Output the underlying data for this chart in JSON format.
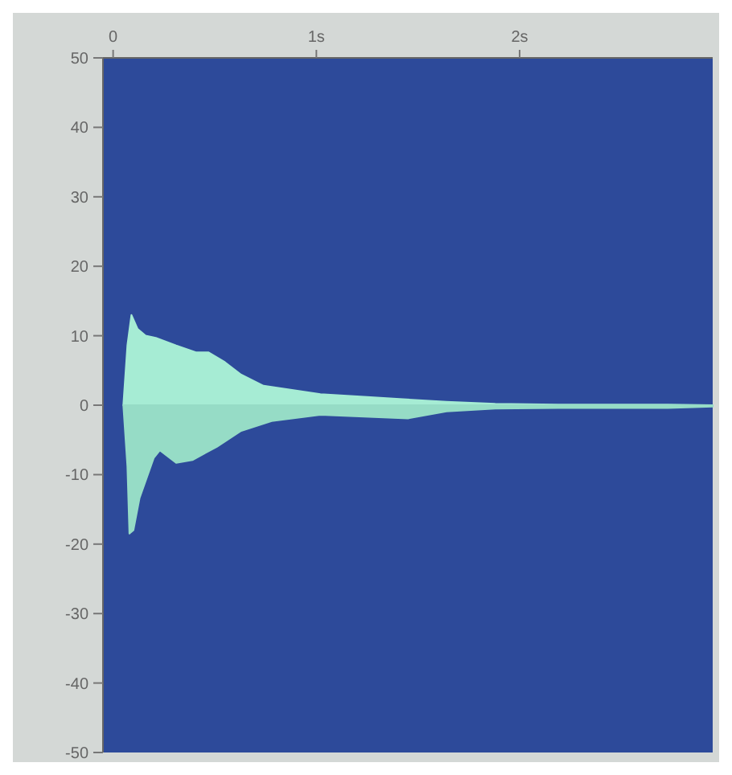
{
  "chart_data": {
    "type": "area",
    "xlim": [
      -0.05,
      2.95
    ],
    "ylim": [
      -50,
      50
    ],
    "xticks": [
      0,
      {
        "value": 1,
        "label": "1s"
      },
      {
        "value": 2,
        "label": "2s"
      }
    ],
    "yticks": [
      50,
      40,
      30,
      20,
      10,
      0,
      -10,
      -20,
      -30,
      -40,
      -50
    ],
    "grid": false,
    "series": [
      {
        "color": "#a6ecd4",
        "x": [
          0.05,
          0.07,
          0.09,
          0.12,
          0.16,
          0.21,
          0.31,
          0.41,
          0.47,
          0.55,
          0.63,
          0.74,
          0.86,
          1.02,
          1.25,
          1.41,
          1.64,
          1.88,
          2.19,
          2.73,
          2.95
        ],
        "values": [
          0,
          8.6,
          13,
          11,
          10,
          9.7,
          8.6,
          7.6,
          7.6,
          6.2,
          4.4,
          2.8,
          2.3,
          1.6,
          1.2,
          0.9,
          0.5,
          0.2,
          0.1,
          0.1,
          0
        ]
      },
      {
        "color": "#96dcc6",
        "x": [
          0.05,
          0.07,
          0.08,
          0.1,
          0.13,
          0.2,
          0.23,
          0.31,
          0.39,
          0.51,
          0.63,
          0.78,
          1.02,
          1.45,
          1.64,
          1.88,
          2.19,
          2.73,
          2.95
        ],
        "values": [
          0,
          -8.8,
          -18.5,
          -18,
          -13.4,
          -7.6,
          -6.5,
          -8.3,
          -7.9,
          -6,
          -3.7,
          -2.3,
          -1.4,
          -1.9,
          -0.9,
          -0.5,
          -0.4,
          -0.4,
          -0.2
        ]
      }
    ]
  }
}
